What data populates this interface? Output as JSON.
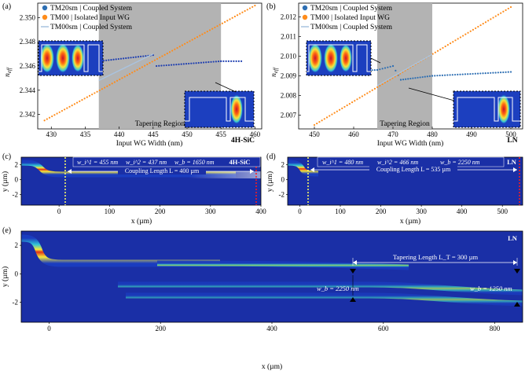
{
  "chart_data": [
    {
      "panel": "(a)",
      "type": "scatter",
      "material": "4H-SiC",
      "xlabel": "Input WG Width (nm)",
      "ylabel": "n_eff",
      "xlim": [
        428,
        461
      ],
      "ylim": [
        2.3408,
        2.3512
      ],
      "xticks": [
        "430",
        "435",
        "440",
        "445",
        "450",
        "455",
        "460"
      ],
      "yticks": [
        "2.342",
        "2.344",
        "2.346",
        "2.348",
        "2.350"
      ],
      "shaded_region": [
        437,
        455
      ],
      "shaded_label": "Tapering Region",
      "legend": [
        "TM20sm | Coupled System",
        "TM00 | Isolated Input WG",
        "TM00sm | Coupled System"
      ],
      "series": [
        {
          "name": "TM20 coupled",
          "color": "#1f3fb0",
          "x": [
            437,
            445,
            445.5,
            455,
            458
          ],
          "y": [
            2.3464,
            2.3469,
            2.346,
            2.3464,
            2.3464
          ]
        },
        {
          "name": "TM00 isolated",
          "color": "#ff8c1a",
          "x": [
            429,
            460
          ],
          "y": [
            2.3415,
            2.351
          ]
        },
        {
          "name": "TM00 coupled",
          "color": "#a9c3df",
          "x": [
            437,
            445
          ],
          "y": [
            2.3448,
            2.347
          ]
        }
      ]
    },
    {
      "panel": "(b)",
      "type": "scatter",
      "material": "LN",
      "xlabel": "Input WG Width (nm)",
      "ylabel": "n_eff",
      "xlim": [
        446,
        503
      ],
      "ylim": [
        2.0063,
        2.0127
      ],
      "xticks": [
        "450",
        "460",
        "470",
        "480",
        "490",
        "500"
      ],
      "yticks": [
        "2.007",
        "2.008",
        "2.009",
        "2.010",
        "2.011",
        "2.012"
      ],
      "shaded_region": [
        466,
        480
      ],
      "shaded_label": "Tapering Region",
      "legend": [
        "TM20sm | Coupled System",
        "TM00 | Isolated Input WG",
        "TM00sm | Coupled System"
      ],
      "series": [
        {
          "name": "TM20 coupled",
          "color": "#2e6fb3",
          "x": [
            450,
            466,
            470,
            472,
            480,
            500
          ],
          "y": [
            2.0092,
            2.0093,
            2.0095,
            2.0088,
            2.009,
            2.0092
          ]
        },
        {
          "name": "TM00 isolated",
          "color": "#ff8c1a",
          "x": [
            450,
            500
          ],
          "y": [
            2.0065,
            2.0125
          ]
        },
        {
          "name": "TM00 coupled",
          "color": "#a9c3df",
          "x": [
            466,
            480
          ],
          "y": [
            2.0085,
            2.0101
          ]
        }
      ]
    },
    {
      "panel": "(c)",
      "type": "heatmap",
      "material": "4H-SiC",
      "xlabel": "x (µm)",
      "ylabel": "y (µm)",
      "xticks": [
        "0",
        "100",
        "200",
        "300",
        "400"
      ],
      "yticks": [
        "2",
        "0",
        "-2"
      ],
      "params": [
        "w_i^1 = 455 nm",
        "w_i^2 = 437 nm",
        "w_b = 1650 nm"
      ],
      "annotation": "Coupling Length L = 400 µm"
    },
    {
      "panel": "(d)",
      "type": "heatmap",
      "material": "LN",
      "xlabel": "x (µm)",
      "ylabel": "y (µm)",
      "xticks": [
        "0",
        "100",
        "200",
        "300",
        "400",
        "500"
      ],
      "yticks": [
        "2",
        "0",
        "-2"
      ],
      "params": [
        "w_i^1 = 480 nm",
        "w_i^2 = 466 nm",
        "w_b = 2250 nm"
      ],
      "annotation": "Coupling Length L = 535 µm"
    },
    {
      "panel": "(e)",
      "type": "heatmap",
      "material": "LN",
      "xlabel": "x (µm)",
      "ylabel": "y (µm)",
      "xticks": [
        "0",
        "200",
        "400",
        "600",
        "800"
      ],
      "yticks": [
        "2",
        "0",
        "-2"
      ],
      "annotation": "Tapering Length L_T = 300 µm",
      "widths": [
        "w_b = 2250 nm",
        "w_b = 1250 nm"
      ]
    }
  ]
}
